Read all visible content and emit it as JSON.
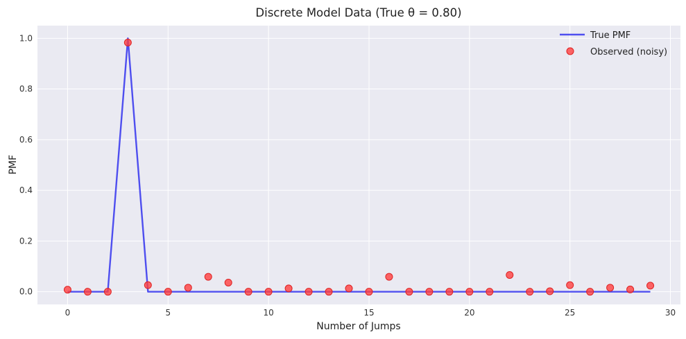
{
  "chart_data": {
    "type": "line",
    "title": "Discrete Model Data (True θ = 0.80)",
    "xlabel": "Number of Jumps",
    "ylabel": "PMF",
    "xlim": [
      -1.5,
      30.5
    ],
    "ylim": [
      -0.05,
      1.05
    ],
    "x_ticks": [
      0,
      5,
      10,
      15,
      20,
      25,
      30
    ],
    "x_tick_labels": [
      "0",
      "5",
      "10",
      "15",
      "20",
      "25",
      "30"
    ],
    "y_ticks": [
      0.0,
      0.2,
      0.4,
      0.6,
      0.8,
      1.0
    ],
    "y_tick_labels": [
      "0.0",
      "0.2",
      "0.4",
      "0.6",
      "0.8",
      "1.0"
    ],
    "grid": true,
    "legend_position": "top-right",
    "x": [
      0,
      1,
      2,
      3,
      4,
      5,
      6,
      7,
      8,
      9,
      10,
      11,
      12,
      13,
      14,
      15,
      16,
      17,
      18,
      19,
      20,
      21,
      22,
      23,
      24,
      25,
      26,
      27,
      28,
      29
    ],
    "series": [
      {
        "name": "True PMF",
        "kind": "line",
        "color": "#3333ee",
        "values": [
          0,
          0,
          0,
          1.0,
          0,
          0,
          0,
          0,
          0,
          0,
          0,
          0,
          0,
          0,
          0,
          0,
          0,
          0,
          0,
          0,
          0,
          0,
          0,
          0,
          0,
          0,
          0,
          0,
          0,
          0
        ]
      },
      {
        "name": "Observed (noisy)",
        "kind": "scatter",
        "color": "#ff4040",
        "values": [
          0.008,
          0,
          0,
          0.983,
          0.026,
          0,
          0.016,
          0.059,
          0.036,
          0,
          0,
          0.013,
          0,
          0,
          0.013,
          0,
          0.059,
          0,
          0,
          0,
          0,
          0,
          0.066,
          0,
          0.002,
          0.026,
          0,
          0.016,
          0.009,
          0.024
        ]
      }
    ]
  }
}
